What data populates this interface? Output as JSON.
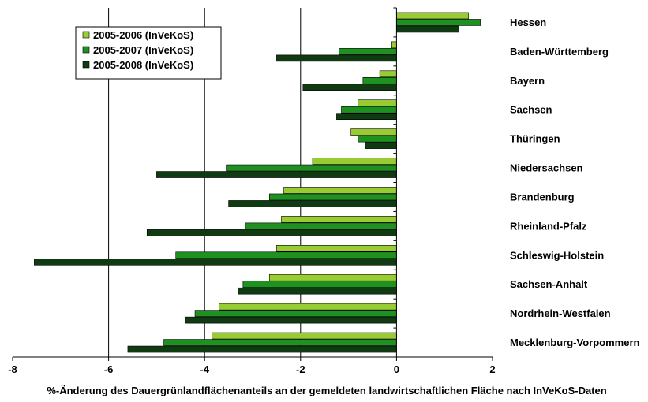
{
  "chart_data": {
    "type": "bar",
    "orientation": "horizontal",
    "title": "",
    "xlabel": "%-Änderung des Dauergrünlandflächenanteils an der gemeldeten landwirtschaftlichen Fläche nach InVeKoS-Daten",
    "ylabel": "",
    "xlim": [
      -8,
      2
    ],
    "xticks": [
      -8,
      -6,
      -4,
      -2,
      0,
      2
    ],
    "grid": "vertical gridlines at -6, -4, -2",
    "legend_position": "top-left",
    "categories": [
      "Hessen",
      "Baden-Württemberg",
      "Bayern",
      "Sachsen",
      "Thüringen",
      "Niedersachsen",
      "Brandenburg",
      "Rheinland-Pfalz",
      "Schleswig-Holstein",
      "Sachsen-Anhalt",
      "Nordrhein-Westfalen",
      "Mecklenburg-Vorpommern"
    ],
    "series": [
      {
        "name": "2005-2006 (InVeKoS)",
        "color": "#99cc33",
        "values": [
          1.5,
          -0.1,
          -0.35,
          -0.8,
          -0.95,
          -1.75,
          -2.35,
          -2.4,
          -2.5,
          -2.65,
          -3.7,
          -3.85
        ]
      },
      {
        "name": "2005-2007 (InVeKoS)",
        "color": "#1e9120",
        "values": [
          1.75,
          -1.2,
          -0.7,
          -1.15,
          -0.8,
          -3.55,
          -2.65,
          -3.15,
          -4.6,
          -3.2,
          -4.2,
          -4.85
        ]
      },
      {
        "name": "2005-2008 (InVeKoS)",
        "color": "#0f3a12",
        "values": [
          1.3,
          -2.5,
          -1.95,
          -1.25,
          -0.65,
          -5.0,
          -3.5,
          -5.2,
          -7.55,
          -3.3,
          -4.4,
          -5.6
        ]
      }
    ]
  }
}
